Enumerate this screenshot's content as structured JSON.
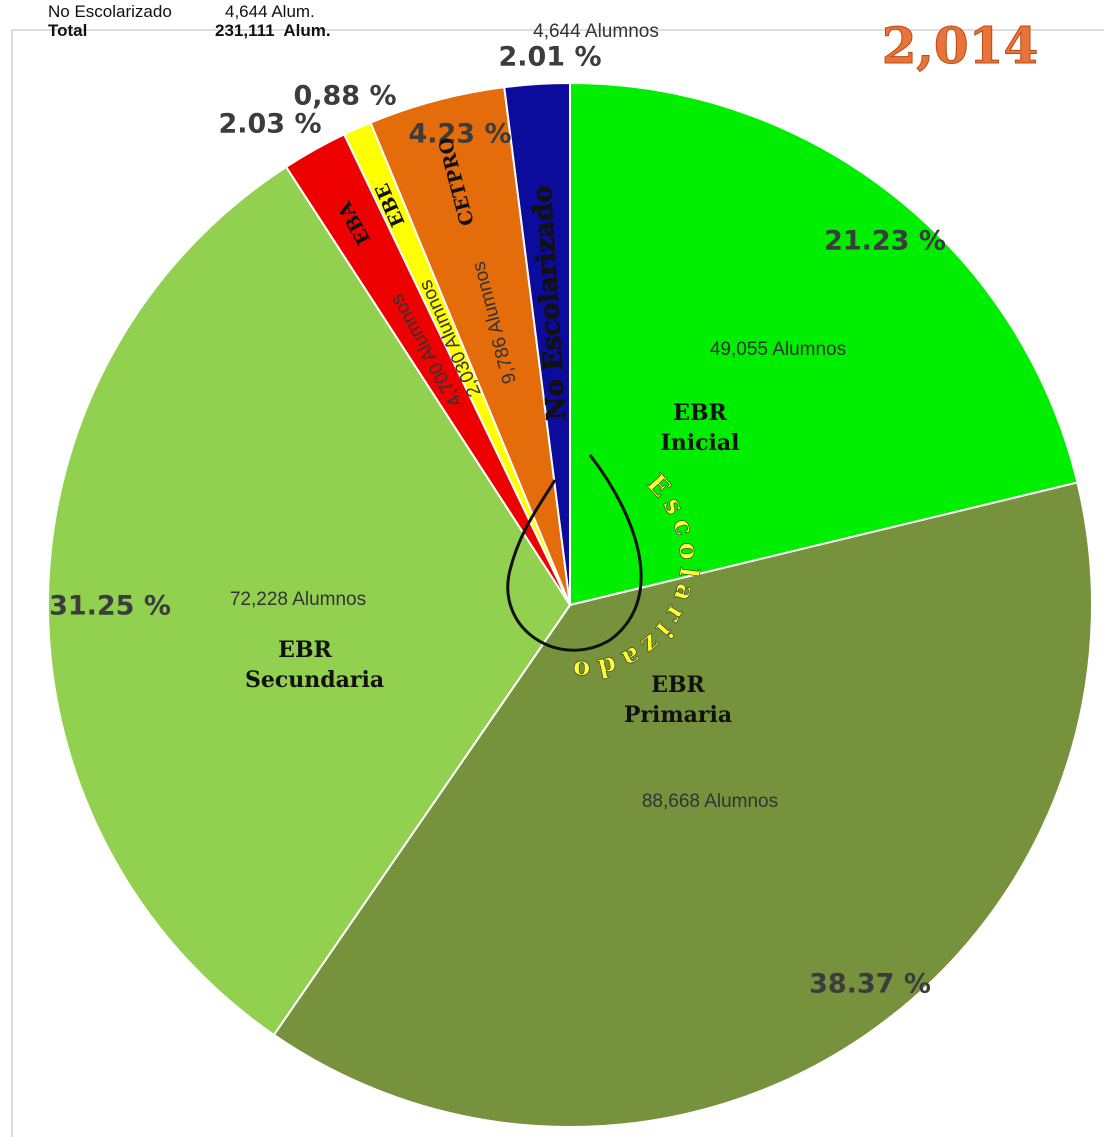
{
  "chart_data": {
    "type": "pie",
    "title": "2,014",
    "summary": [
      {
        "label": "No Escolarizado",
        "value": "4,644 Alum."
      },
      {
        "label": "Total",
        "value": "231,111  Alum."
      }
    ],
    "categories": [
      "EBR Inicial",
      "EBR Primaria",
      "EBR Secundaria",
      "EBA",
      "EBE",
      "CETPRO",
      "No Escolarizado"
    ],
    "values": [
      21.23,
      38.37,
      31.25,
      2.03,
      0.88,
      4.23,
      2.01
    ],
    "value_labels": [
      "21.23  %",
      "38.37  %",
      "31.25  %",
      "2.03  %",
      "0,88  %",
      "4.23  %",
      "2.01  %"
    ],
    "count_labels": [
      "49,055 Alumnos",
      "88,668 Alumnos",
      "72,228 Alumnos",
      "4,700 Alumnos",
      "2,030 Alumnos",
      "9,786 Alumnos",
      "4,644 Alumnos"
    ],
    "colors": [
      "#00ee00",
      "#76923c",
      "#92d050",
      "#ee0000",
      "#ffff00",
      "#e46c0a",
      "#0c0c9c"
    ],
    "annotation": "Escolarizado"
  }
}
